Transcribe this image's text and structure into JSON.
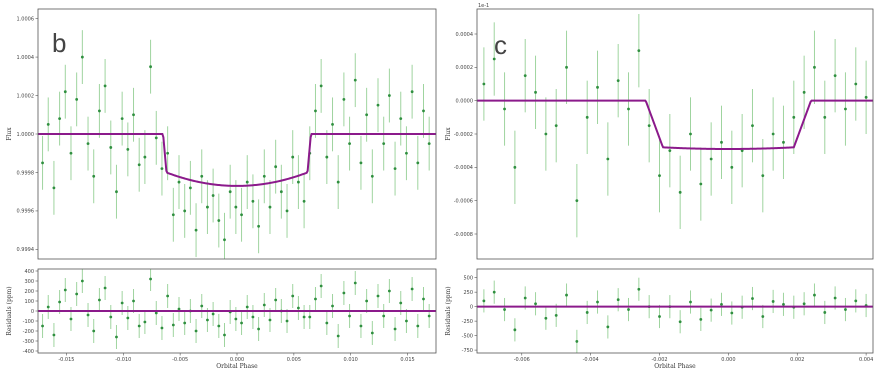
{
  "colors": {
    "model": "#8b1a8b",
    "data_point": "#2f8f3f",
    "error_bar": "#9fd49f",
    "axes": "#555555"
  },
  "chart_data": [
    {
      "panel_label": "b",
      "type": "scatter",
      "model": {
        "baseline": 1.0,
        "depth_min": 0.99973,
        "depth_edge": 0.9998,
        "ingress": [
          -0.0065,
          -0.0062
        ],
        "egress": [
          0.0062,
          0.0065
        ]
      },
      "flux_axis": {
        "ylabel": "Flux",
        "ylim": [
          0.99935,
          1.00065
        ],
        "ticks": [
          "0.9994",
          "0.9996",
          "0.9998",
          "1.0000",
          "1.0002",
          "1.0004",
          "1.0006"
        ],
        "tick_values": [
          0.9994,
          0.9996,
          0.9998,
          1.0,
          1.0002,
          1.0004,
          1.0006
        ]
      },
      "residual_axis": {
        "ylabel": "Residuals (ppm)",
        "ylim": [
          -420,
          420
        ],
        "ticks": [
          "-400",
          "-300",
          "-200",
          "-100",
          "0",
          "100",
          "200",
          "300",
          "400"
        ],
        "tick_values": [
          -400,
          -300,
          -200,
          -100,
          0,
          100,
          200,
          300,
          400
        ]
      },
      "x_axis": {
        "xlabel": "Orbital Phase",
        "xlim": [
          -0.0175,
          0.0175
        ],
        "ticks": [
          "-0.015",
          "-0.010",
          "-0.005",
          "0.000",
          "0.005",
          "0.010",
          "0.015"
        ],
        "tick_values": [
          -0.015,
          -0.01,
          -0.005,
          0.0,
          0.005,
          0.01,
          0.015
        ]
      },
      "flux_points": [
        [
          -0.0171,
          0.99985,
          0.00014
        ],
        [
          -0.0166,
          1.00005,
          0.00014
        ],
        [
          -0.0161,
          0.99972,
          0.00014
        ],
        [
          -0.0156,
          1.00008,
          0.00014
        ],
        [
          -0.0151,
          1.00022,
          0.00014
        ],
        [
          -0.0146,
          0.9999,
          0.00014
        ],
        [
          -0.0141,
          1.00018,
          0.00014
        ],
        [
          -0.0136,
          1.0004,
          0.00014
        ],
        [
          -0.0131,
          0.99995,
          0.00014
        ],
        [
          -0.0126,
          0.99978,
          0.00014
        ],
        [
          -0.0121,
          1.00012,
          0.00014
        ],
        [
          -0.0116,
          1.00025,
          0.00014
        ],
        [
          -0.0111,
          0.99993,
          0.00014
        ],
        [
          -0.0106,
          0.9997,
          0.00014
        ],
        [
          -0.0101,
          1.00008,
          0.00014
        ],
        [
          -0.0096,
          0.99992,
          0.00014
        ],
        [
          -0.0091,
          1.0001,
          0.00014
        ],
        [
          -0.0086,
          0.99984,
          0.00014
        ],
        [
          -0.0081,
          0.99988,
          0.00014
        ],
        [
          -0.0076,
          1.00035,
          0.00014
        ],
        [
          -0.0071,
          0.99998,
          0.00014
        ],
        [
          -0.0066,
          0.99982,
          0.00014
        ],
        [
          -0.0061,
          0.9999,
          0.00014
        ],
        [
          -0.0056,
          0.99958,
          0.00014
        ],
        [
          -0.0051,
          0.99975,
          0.00014
        ],
        [
          -0.0046,
          0.9996,
          0.00014
        ],
        [
          -0.0041,
          0.99972,
          0.00014
        ],
        [
          -0.0036,
          0.9995,
          0.00014
        ],
        [
          -0.0031,
          0.99978,
          0.00014
        ],
        [
          -0.0026,
          0.99962,
          0.00014
        ],
        [
          -0.0021,
          0.99968,
          0.00014
        ],
        [
          -0.0016,
          0.99955,
          0.00014
        ],
        [
          -0.0011,
          0.99945,
          0.00014
        ],
        [
          -0.0006,
          0.9997,
          0.00014
        ],
        [
          -0.0001,
          0.99962,
          0.00014
        ],
        [
          0.0004,
          0.99958,
          0.00014
        ],
        [
          0.0009,
          0.99975,
          0.00014
        ],
        [
          0.0014,
          0.99965,
          0.00014
        ],
        [
          0.0019,
          0.99952,
          0.00014
        ],
        [
          0.0024,
          0.99978,
          0.00014
        ],
        [
          0.0029,
          0.99962,
          0.00014
        ],
        [
          0.0034,
          0.99983,
          0.00014
        ],
        [
          0.0039,
          0.9997,
          0.00014
        ],
        [
          0.0044,
          0.9996,
          0.00014
        ],
        [
          0.0049,
          0.99988,
          0.00014
        ],
        [
          0.0054,
          0.99975,
          0.00014
        ],
        [
          0.0059,
          0.99965,
          0.00014
        ],
        [
          0.0064,
          0.9999,
          0.00014
        ],
        [
          0.0069,
          1.00012,
          0.00014
        ],
        [
          0.0074,
          1.00025,
          0.00014
        ],
        [
          0.0079,
          0.99988,
          0.00014
        ],
        [
          0.0084,
          1.00005,
          0.00014
        ],
        [
          0.0089,
          0.99975,
          0.00014
        ],
        [
          0.0094,
          1.00018,
          0.00014
        ],
        [
          0.0099,
          0.99995,
          0.00014
        ],
        [
          0.0104,
          1.00028,
          0.00014
        ],
        [
          0.0109,
          0.99985,
          0.00014
        ],
        [
          0.0114,
          1.0001,
          0.00014
        ],
        [
          0.0119,
          0.99978,
          0.00014
        ],
        [
          0.0124,
          1.00015,
          0.00014
        ],
        [
          0.0129,
          0.99995,
          0.00014
        ],
        [
          0.0134,
          1.0002,
          0.00014
        ],
        [
          0.0139,
          0.99982,
          0.00014
        ],
        [
          0.0144,
          1.00008,
          0.00014
        ],
        [
          0.0149,
          0.9999,
          0.00014
        ],
        [
          0.0154,
          1.00022,
          0.00014
        ],
        [
          0.0159,
          0.99985,
          0.00014
        ],
        [
          0.0164,
          1.00012,
          0.00014
        ],
        [
          0.0169,
          0.99995,
          0.00014
        ]
      ],
      "residual_points": [
        [
          -0.0171,
          -150,
          120
        ],
        [
          -0.0166,
          40,
          120
        ],
        [
          -0.0161,
          -240,
          120
        ],
        [
          -0.0156,
          90,
          120
        ],
        [
          -0.0151,
          210,
          120
        ],
        [
          -0.0146,
          -80,
          120
        ],
        [
          -0.0141,
          170,
          120
        ],
        [
          -0.0136,
          300,
          120
        ],
        [
          -0.0131,
          -40,
          120
        ],
        [
          -0.0126,
          -200,
          120
        ],
        [
          -0.0121,
          110,
          120
        ],
        [
          -0.0116,
          230,
          120
        ],
        [
          -0.0111,
          -60,
          120
        ],
        [
          -0.0106,
          -260,
          120
        ],
        [
          -0.0101,
          80,
          120
        ],
        [
          -0.0096,
          -70,
          120
        ],
        [
          -0.0091,
          100,
          120
        ],
        [
          -0.0086,
          -150,
          120
        ],
        [
          -0.0081,
          -110,
          120
        ],
        [
          -0.0076,
          320,
          120
        ],
        [
          -0.0071,
          -20,
          120
        ],
        [
          -0.0066,
          -170,
          120
        ],
        [
          -0.0061,
          150,
          120
        ],
        [
          -0.0056,
          -140,
          120
        ],
        [
          -0.0051,
          20,
          120
        ],
        [
          -0.0046,
          -120,
          120
        ],
        [
          -0.0041,
          0,
          120
        ],
        [
          -0.0036,
          -200,
          120
        ],
        [
          -0.0031,
          50,
          120
        ],
        [
          -0.0026,
          -90,
          120
        ],
        [
          -0.0021,
          -30,
          120
        ],
        [
          -0.0016,
          -150,
          120
        ],
        [
          -0.0011,
          -240,
          120
        ],
        [
          -0.0006,
          -10,
          120
        ],
        [
          -0.0001,
          -80,
          120
        ],
        [
          0.0004,
          -120,
          120
        ],
        [
          0.0009,
          40,
          120
        ],
        [
          0.0014,
          -60,
          120
        ],
        [
          0.0019,
          -180,
          120
        ],
        [
          0.0024,
          60,
          120
        ],
        [
          0.0029,
          -90,
          120
        ],
        [
          0.0034,
          110,
          120
        ],
        [
          0.0039,
          0,
          120
        ],
        [
          0.0044,
          -100,
          120
        ],
        [
          0.0049,
          150,
          120
        ],
        [
          0.0054,
          30,
          120
        ],
        [
          0.0059,
          -60,
          120
        ],
        [
          0.0064,
          -60,
          120
        ],
        [
          0.0069,
          120,
          120
        ],
        [
          0.0074,
          250,
          120
        ],
        [
          0.0079,
          -120,
          120
        ],
        [
          0.0084,
          50,
          120
        ],
        [
          0.0089,
          -250,
          120
        ],
        [
          0.0094,
          180,
          120
        ],
        [
          0.0099,
          -50,
          120
        ],
        [
          0.0104,
          280,
          120
        ],
        [
          0.0109,
          -150,
          120
        ],
        [
          0.0114,
          100,
          120
        ],
        [
          0.0119,
          -220,
          120
        ],
        [
          0.0124,
          150,
          120
        ],
        [
          0.0129,
          -50,
          120
        ],
        [
          0.0134,
          200,
          120
        ],
        [
          0.0139,
          -180,
          120
        ],
        [
          0.0144,
          80,
          120
        ],
        [
          0.0149,
          -100,
          120
        ],
        [
          0.0154,
          220,
          120
        ],
        [
          0.0159,
          -150,
          120
        ],
        [
          0.0164,
          120,
          120
        ],
        [
          0.0169,
          -50,
          120
        ]
      ]
    },
    {
      "panel_label": "c",
      "type": "scatter",
      "scale_note": "1e-1",
      "model": {
        "baseline": 0.0,
        "depth_min": -0.00029,
        "depth_edge": -0.00028,
        "ingress": [
          -0.0024,
          -0.0019
        ],
        "egress": [
          0.0019,
          0.0024
        ]
      },
      "flux_axis": {
        "ylabel": "Flux",
        "ylim": [
          -0.00095,
          0.00055
        ],
        "ticks": [
          "-0.0008",
          "-0.0006",
          "-0.0004",
          "-0.0002",
          "0.0000",
          "0.0002",
          "0.0004"
        ],
        "tick_values": [
          -0.0008,
          -0.0006,
          -0.0004,
          -0.0002,
          0.0,
          0.0002,
          0.0004
        ]
      },
      "residual_axis": {
        "ylabel": "Residuals (ppm)",
        "ylim": [
          -800,
          650
        ],
        "ticks": [
          "-750",
          "-500",
          "-250",
          "0",
          "250",
          "500"
        ],
        "tick_values": [
          -750,
          -500,
          -250,
          0,
          250,
          500
        ]
      },
      "x_axis": {
        "xlabel": "Orbital Phase",
        "xlim": [
          -0.0073,
          0.0042
        ],
        "ticks": [
          "-0.006",
          "-0.004",
          "-0.002",
          "0.000",
          "0.002",
          "0.004"
        ],
        "tick_values": [
          -0.006,
          -0.004,
          -0.002,
          0.0,
          0.002,
          0.004
        ]
      },
      "flux_points": [
        [
          -0.0071,
          0.0001,
          0.00022
        ],
        [
          -0.0068,
          0.00025,
          0.00022
        ],
        [
          -0.0065,
          -5e-05,
          0.00022
        ],
        [
          -0.0062,
          -0.0004,
          0.00022
        ],
        [
          -0.0059,
          0.00015,
          0.00022
        ],
        [
          -0.0056,
          5e-05,
          0.00022
        ],
        [
          -0.0053,
          -0.0002,
          0.00022
        ],
        [
          -0.005,
          -0.00015,
          0.00022
        ],
        [
          -0.0047,
          0.0002,
          0.00022
        ],
        [
          -0.0044,
          -0.0006,
          0.00022
        ],
        [
          -0.0041,
          -0.0001,
          0.00022
        ],
        [
          -0.0038,
          8e-05,
          0.00022
        ],
        [
          -0.0035,
          -0.00035,
          0.00022
        ],
        [
          -0.0032,
          0.00012,
          0.00022
        ],
        [
          -0.0029,
          -5e-05,
          0.00022
        ],
        [
          -0.0026,
          0.0003,
          0.00022
        ],
        [
          -0.0023,
          -0.00015,
          0.00022
        ],
        [
          -0.002,
          -0.00045,
          0.00022
        ],
        [
          -0.0017,
          -0.0003,
          0.00022
        ],
        [
          -0.0014,
          -0.00055,
          0.00022
        ],
        [
          -0.0011,
          -0.0002,
          0.00022
        ],
        [
          -0.0008,
          -0.0005,
          0.00022
        ],
        [
          -0.0005,
          -0.00035,
          0.00022
        ],
        [
          -0.0002,
          -0.00025,
          0.00022
        ],
        [
          0.0001,
          -0.0004,
          0.00022
        ],
        [
          0.0004,
          -0.0003,
          0.00022
        ],
        [
          0.0007,
          -0.00015,
          0.00022
        ],
        [
          0.001,
          -0.00045,
          0.00022
        ],
        [
          0.0013,
          -0.0002,
          0.00022
        ],
        [
          0.0016,
          -0.00025,
          0.00022
        ],
        [
          0.0019,
          -0.0001,
          0.00022
        ],
        [
          0.0022,
          5e-05,
          0.00022
        ],
        [
          0.0025,
          0.0002,
          0.00022
        ],
        [
          0.0028,
          -0.0001,
          0.00022
        ],
        [
          0.0031,
          0.00015,
          0.00022
        ],
        [
          0.0034,
          -5e-05,
          0.00022
        ],
        [
          0.0037,
          0.0001,
          0.00022
        ],
        [
          0.004,
          2e-05,
          0.00022
        ]
      ],
      "residual_points": [
        [
          -0.0071,
          100,
          200
        ],
        [
          -0.0068,
          250,
          200
        ],
        [
          -0.0065,
          -50,
          200
        ],
        [
          -0.0062,
          -400,
          200
        ],
        [
          -0.0059,
          150,
          200
        ],
        [
          -0.0056,
          50,
          200
        ],
        [
          -0.0053,
          -200,
          200
        ],
        [
          -0.005,
          -150,
          200
        ],
        [
          -0.0047,
          200,
          200
        ],
        [
          -0.0044,
          -600,
          200
        ],
        [
          -0.0041,
          -100,
          200
        ],
        [
          -0.0038,
          80,
          200
        ],
        [
          -0.0035,
          -350,
          200
        ],
        [
          -0.0032,
          120,
          200
        ],
        [
          -0.0029,
          -50,
          200
        ],
        [
          -0.0026,
          300,
          200
        ],
        [
          -0.0023,
          0,
          200
        ],
        [
          -0.002,
          -170,
          200
        ],
        [
          -0.0017,
          0,
          200
        ],
        [
          -0.0014,
          -260,
          200
        ],
        [
          -0.0011,
          80,
          200
        ],
        [
          -0.0008,
          -220,
          200
        ],
        [
          -0.0005,
          -60,
          200
        ],
        [
          -0.0002,
          40,
          200
        ],
        [
          0.0001,
          -110,
          200
        ],
        [
          0.0004,
          -10,
          200
        ],
        [
          0.0007,
          140,
          200
        ],
        [
          0.001,
          -170,
          200
        ],
        [
          0.0013,
          90,
          200
        ],
        [
          0.0016,
          40,
          200
        ],
        [
          0.0019,
          -10,
          200
        ],
        [
          0.0022,
          50,
          200
        ],
        [
          0.0025,
          200,
          200
        ],
        [
          0.0028,
          -100,
          200
        ],
        [
          0.0031,
          150,
          200
        ],
        [
          0.0034,
          -50,
          200
        ],
        [
          0.0037,
          100,
          200
        ],
        [
          0.004,
          20,
          200
        ]
      ]
    }
  ]
}
